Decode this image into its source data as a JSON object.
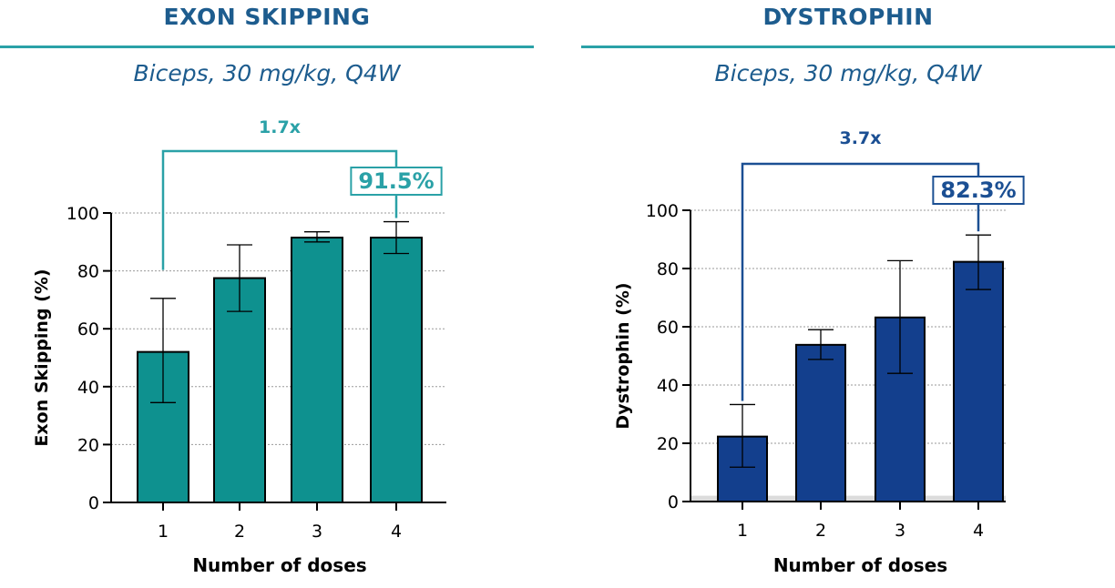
{
  "chart_data": [
    {
      "type": "bar",
      "title": "EXON SKIPPING",
      "subtitle": "Biceps, 30 mg/kg, Q4W",
      "xlabel": "Number of doses",
      "ylabel": "Exon Skipping (%)",
      "categories": [
        "1",
        "2",
        "3",
        "4"
      ],
      "values": [
        52,
        77.5,
        91.5,
        91.5
      ],
      "error_low": [
        34.5,
        66,
        90,
        86
      ],
      "error_high": [
        70.5,
        89,
        93.5,
        97
      ],
      "ylim": [
        0,
        100
      ],
      "yticks": [
        0,
        20,
        40,
        60,
        80,
        100
      ],
      "grid": true,
      "bar_color": "#0e918f",
      "accent_color": "#2aa1a7",
      "annotation": {
        "fold_label": "1.7x",
        "from_category": "1",
        "to_category": "4",
        "callout": "91.5%"
      }
    },
    {
      "type": "bar",
      "title": "DYSTROPHIN",
      "subtitle": "Biceps, 30 mg/kg, Q4W",
      "xlabel": "Number of doses",
      "ylabel": "Dystrophin (%)",
      "categories": [
        "1",
        "2",
        "3",
        "4"
      ],
      "values": [
        22.3,
        53.8,
        63.2,
        82.3
      ],
      "error_low": [
        11.8,
        48.8,
        44,
        72.8
      ],
      "error_high": [
        33.3,
        59,
        82.7,
        91.5
      ],
      "ylim": [
        0,
        100
      ],
      "yticks": [
        0,
        20,
        40,
        60,
        80,
        100
      ],
      "grid": true,
      "bar_color": "#133f8d",
      "accent_color": "#1b4f93",
      "annotation": {
        "fold_label": "3.7x",
        "from_category": "1",
        "to_category": "4",
        "callout": "82.3%"
      }
    }
  ]
}
